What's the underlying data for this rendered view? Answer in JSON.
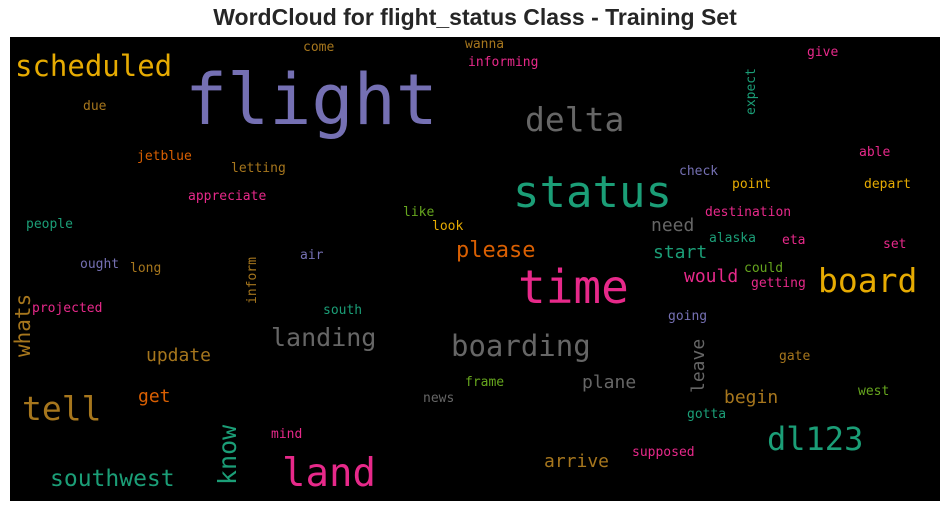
{
  "chart_data": {
    "type": "wordcloud",
    "title": "WordCloud for flight_status Class - Training Set",
    "background": "#000000",
    "words": [
      {
        "text": "flight",
        "color": "#7570b3"
      },
      {
        "text": "status",
        "color": "#1b9e77"
      },
      {
        "text": "time",
        "color": "#e7298a"
      },
      {
        "text": "scheduled",
        "color": "#e6ab02"
      },
      {
        "text": "delta",
        "color": "#666666"
      },
      {
        "text": "board",
        "color": "#e6ab02"
      },
      {
        "text": "dl123",
        "color": "#1b9e77"
      },
      {
        "text": "land",
        "color": "#e7298a"
      },
      {
        "text": "tell",
        "color": "#a6761d"
      },
      {
        "text": "boarding",
        "color": "#666666"
      },
      {
        "text": "landing",
        "color": "#666666"
      },
      {
        "text": "know",
        "color": "#1b9e77"
      },
      {
        "text": "southwest",
        "color": "#1b9e77"
      },
      {
        "text": "whats",
        "color": "#a6761d"
      },
      {
        "text": "please",
        "color": "#d95f02"
      },
      {
        "text": "update",
        "color": "#a6761d"
      },
      {
        "text": "plane",
        "color": "#666666"
      },
      {
        "text": "start",
        "color": "#1b9e77"
      },
      {
        "text": "need",
        "color": "#666666"
      },
      {
        "text": "would",
        "color": "#e7298a"
      },
      {
        "text": "leave",
        "color": "#666666"
      },
      {
        "text": "get",
        "color": "#d95f02"
      },
      {
        "text": "begin",
        "color": "#a6761d"
      },
      {
        "text": "arrive",
        "color": "#a6761d"
      },
      {
        "text": "come",
        "color": "#a6761d"
      },
      {
        "text": "wanna",
        "color": "#a6761d"
      },
      {
        "text": "informing",
        "color": "#e7298a"
      },
      {
        "text": "give",
        "color": "#e7298a"
      },
      {
        "text": "expect",
        "color": "#1b9e77"
      },
      {
        "text": "due",
        "color": "#a6761d"
      },
      {
        "text": "jetblue",
        "color": "#d95f02"
      },
      {
        "text": "letting",
        "color": "#a6761d"
      },
      {
        "text": "appreciate",
        "color": "#e7298a"
      },
      {
        "text": "check",
        "color": "#7570b3"
      },
      {
        "text": "point",
        "color": "#e6ab02"
      },
      {
        "text": "able",
        "color": "#e7298a"
      },
      {
        "text": "depart",
        "color": "#e6ab02"
      },
      {
        "text": "destination",
        "color": "#e7298a"
      },
      {
        "text": "people",
        "color": "#1b9e77"
      },
      {
        "text": "like",
        "color": "#66a61e"
      },
      {
        "text": "look",
        "color": "#e6ab02"
      },
      {
        "text": "alaska",
        "color": "#1b9e77"
      },
      {
        "text": "eta",
        "color": "#e7298a"
      },
      {
        "text": "set",
        "color": "#e7298a"
      },
      {
        "text": "ought",
        "color": "#7570b3"
      },
      {
        "text": "long",
        "color": "#a6761d"
      },
      {
        "text": "inform",
        "color": "#a6761d"
      },
      {
        "text": "air",
        "color": "#7570b3"
      },
      {
        "text": "could",
        "color": "#66a61e"
      },
      {
        "text": "getting",
        "color": "#e7298a"
      },
      {
        "text": "projected",
        "color": "#e7298a"
      },
      {
        "text": "south",
        "color": "#1b9e77"
      },
      {
        "text": "going",
        "color": "#7570b3"
      },
      {
        "text": "gate",
        "color": "#a6761d"
      },
      {
        "text": "frame",
        "color": "#66a61e"
      },
      {
        "text": "news",
        "color": "#666666"
      },
      {
        "text": "west",
        "color": "#66a61e"
      },
      {
        "text": "gotta",
        "color": "#1b9e77"
      },
      {
        "text": "mind",
        "color": "#e7298a"
      },
      {
        "text": "supposed",
        "color": "#e7298a"
      }
    ]
  }
}
